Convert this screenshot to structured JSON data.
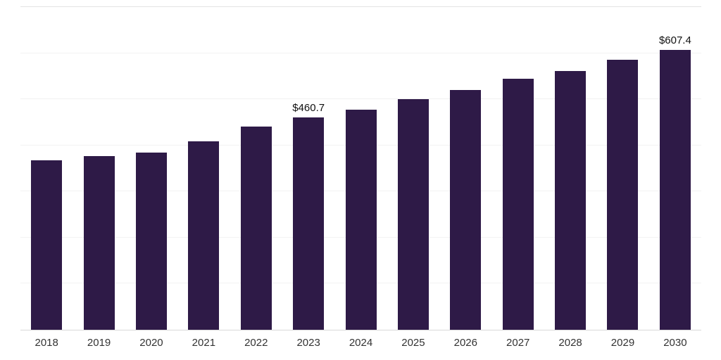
{
  "chart_data": {
    "type": "bar",
    "title": "",
    "xlabel": "",
    "ylabel": "",
    "categories": [
      "2018",
      "2019",
      "2020",
      "2021",
      "2022",
      "2023",
      "2024",
      "2025",
      "2026",
      "2027",
      "2028",
      "2029",
      "2030"
    ],
    "values": [
      368,
      377,
      384,
      408,
      441,
      460.7,
      478,
      501,
      520,
      544,
      562,
      586,
      607.4
    ],
    "data_labels": {
      "2023": "$460.7",
      "2030": "$607.4"
    },
    "ylim": [
      0,
      700
    ],
    "gridline_interval": 100,
    "grid": true,
    "legend": false,
    "bar_color": "#2E1A47",
    "gridline_color": "#f2f2f2",
    "axis_line_color": "#d9d9d9"
  }
}
